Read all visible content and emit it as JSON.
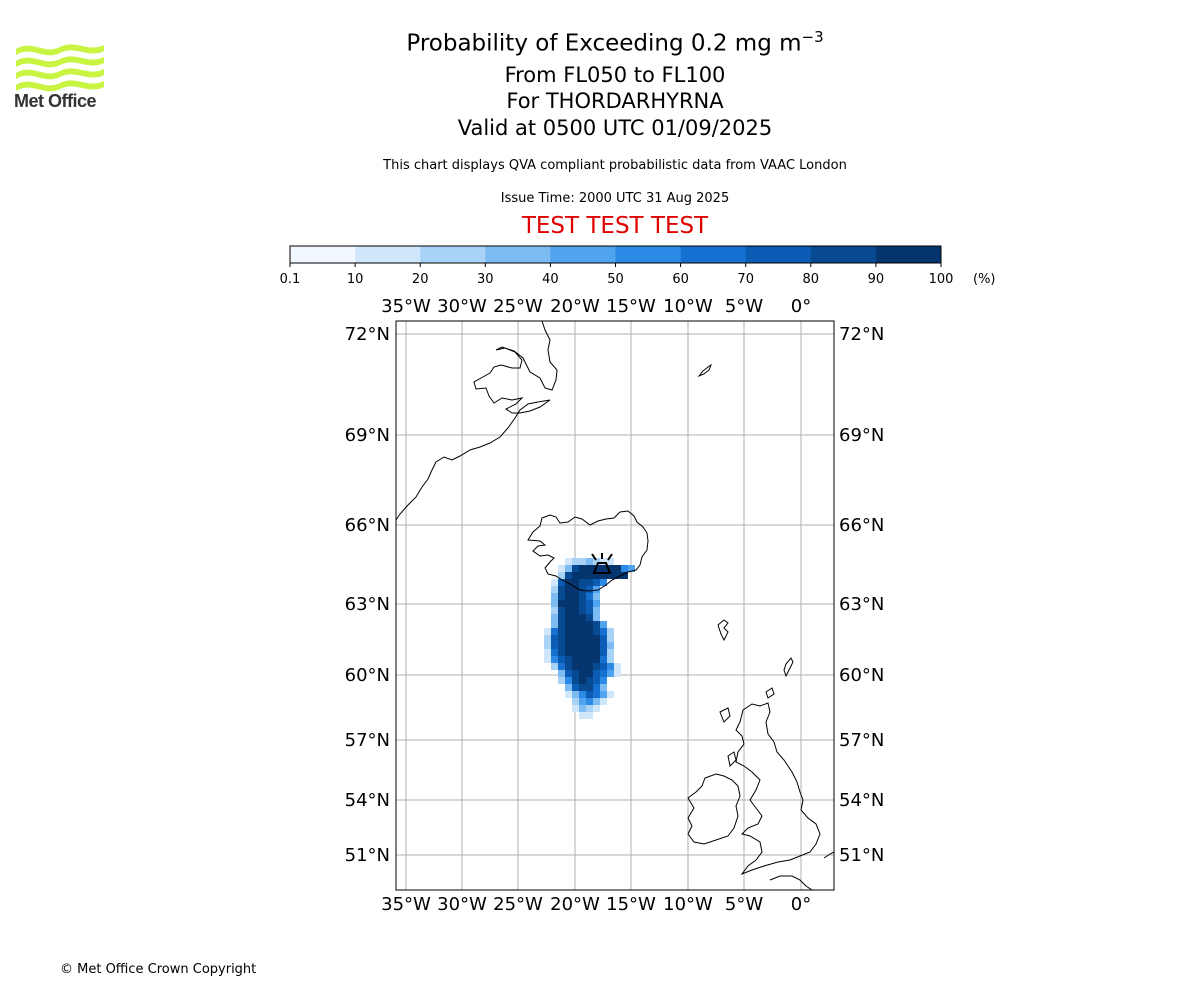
{
  "logo": {
    "name": "Met Office",
    "color": "#c8f542"
  },
  "title": {
    "main": "Probability of Exceeding 0.2 mg m",
    "main_sup": "−3",
    "levels": "From FL050 to FL100",
    "volcano": "For THORDARHYRNA",
    "valid": "Valid at 0500 UTC 01/09/2025"
  },
  "subtitle": "This chart displays QVA compliant probabilistic data from VAAC London",
  "issue_time": "Issue Time: 2000 UTC 31 Aug 2025",
  "test_banner": "TEST TEST TEST",
  "test_color": "#e00000",
  "colorbar": {
    "ticks": [
      "0.1",
      "10",
      "20",
      "30",
      "40",
      "50",
      "60",
      "70",
      "80",
      "90",
      "100"
    ],
    "unit": "(%)",
    "colors": [
      "#f0f7ff",
      "#cfe6fb",
      "#a9d2f7",
      "#7dbbf3",
      "#4fa3ef",
      "#2b8ae6",
      "#1670d2",
      "#0c5bb4",
      "#084a92",
      "#05356e"
    ]
  },
  "map": {
    "lon_labels": [
      "35°W",
      "30°W",
      "25°W",
      "20°W",
      "15°W",
      "10°W",
      "5°W",
      "0°"
    ],
    "lat_labels": [
      "72°N",
      "69°N",
      "66°N",
      "63°N",
      "60°N",
      "57°N",
      "54°N",
      "51°N"
    ],
    "volcano_symbol": "volcano-icon"
  },
  "copyright": "© Met Office Crown Copyright"
}
